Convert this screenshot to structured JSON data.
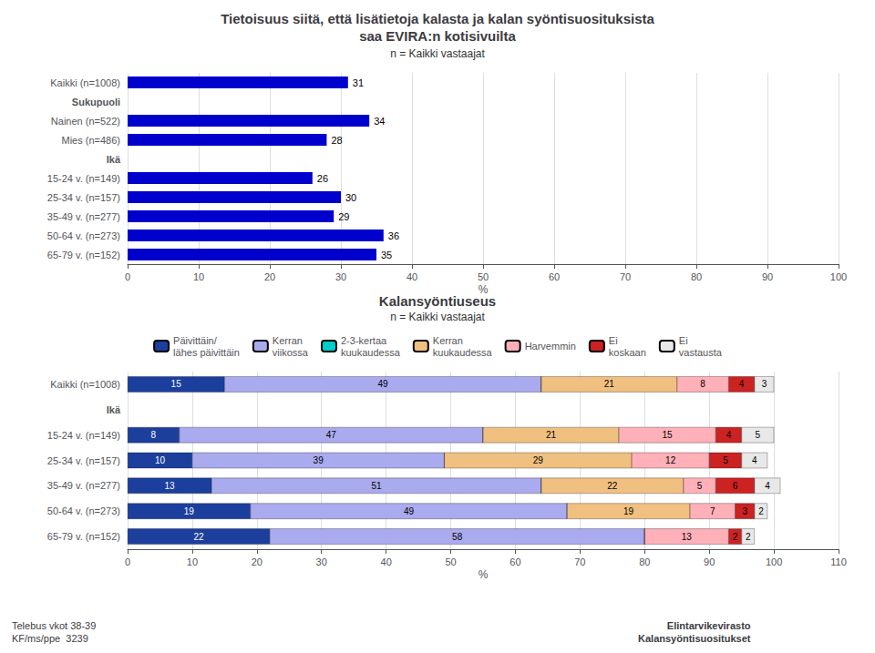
{
  "chart_data": [
    {
      "type": "bar",
      "orientation": "horizontal",
      "title": "Tietoisuus siitä, että lisätietoja kalasta ja kalan syöntisuosituksista\nsaa EVIRA:n kotisivuilta",
      "subtitle": "n = Kaikki vastaajat",
      "categories": [
        "Kaikki (n=1008)",
        "Sukupuoli",
        "Nainen (n=522)",
        "Mies (n=486)",
        "Ikä",
        "15-24 v. (n=149)",
        "25-34 v. (n=157)",
        "35-49 v. (n=277)",
        "50-64 v. (n=273)",
        "65-79 v. (n=152)"
      ],
      "values": [
        31,
        null,
        34,
        28,
        null,
        26,
        30,
        29,
        36,
        35
      ],
      "color": "#0000cc",
      "xlim": [
        0,
        100
      ],
      "xticks": [
        0,
        10,
        20,
        30,
        40,
        50,
        60,
        70,
        80,
        90,
        100
      ],
      "xlabel": "%",
      "grid": true,
      "data_labels": true
    },
    {
      "type": "bar",
      "orientation": "horizontal",
      "stacked": true,
      "title": "Kalansyöntiuseus",
      "subtitle": "n = Kaikki vastaajat",
      "categories": [
        "Kaikki (n=1008)",
        "Ikä",
        "15-24 v. (n=149)",
        "25-34 v. (n=157)",
        "35-49 v. (n=277)",
        "50-64 v. (n=273)",
        "65-79 v. (n=152)"
      ],
      "series": [
        {
          "name": "Päivittäin/\nlähes päivittäin",
          "color": "#1c3f9e",
          "values": [
            15,
            null,
            8,
            10,
            13,
            19,
            22
          ]
        },
        {
          "name": "Kerran\nviikossa",
          "color": "#aaaaee",
          "values": [
            49,
            null,
            47,
            39,
            51,
            49,
            58
          ]
        },
        {
          "name": "2-3-kertaa\nkuukaudessa",
          "color": "#00cccc",
          "values": [
            0,
            null,
            0,
            0,
            0,
            0,
            0
          ]
        },
        {
          "name": "Kerran\nkuukaudessa",
          "color": "#f0c080",
          "values": [
            21,
            null,
            21,
            29,
            22,
            19,
            0
          ]
        },
        {
          "name": "Harvemmin",
          "color": "#ffb0b8",
          "values": [
            8,
            null,
            15,
            12,
            5,
            7,
            13
          ]
        },
        {
          "name": "Ei\nkoskaan",
          "color": "#cc2222",
          "values": [
            4,
            null,
            4,
            5,
            6,
            3,
            2
          ]
        },
        {
          "name": "Ei\nvastausta",
          "color": "#e8e8e8",
          "values": [
            3,
            null,
            5,
            4,
            4,
            2,
            2
          ]
        }
      ],
      "xlim": [
        0,
        110
      ],
      "xticks": [
        0,
        10,
        20,
        30,
        40,
        50,
        60,
        70,
        80,
        90,
        100,
        110
      ],
      "xlabel": "%",
      "grid": true,
      "legend": "top",
      "data_labels": true,
      "annotations": [
        "Telebus vkot 38-39\nKF/ms/ppe  3239",
        "Elintarvikevirasto\nKalansyöntisuositukset"
      ]
    }
  ]
}
